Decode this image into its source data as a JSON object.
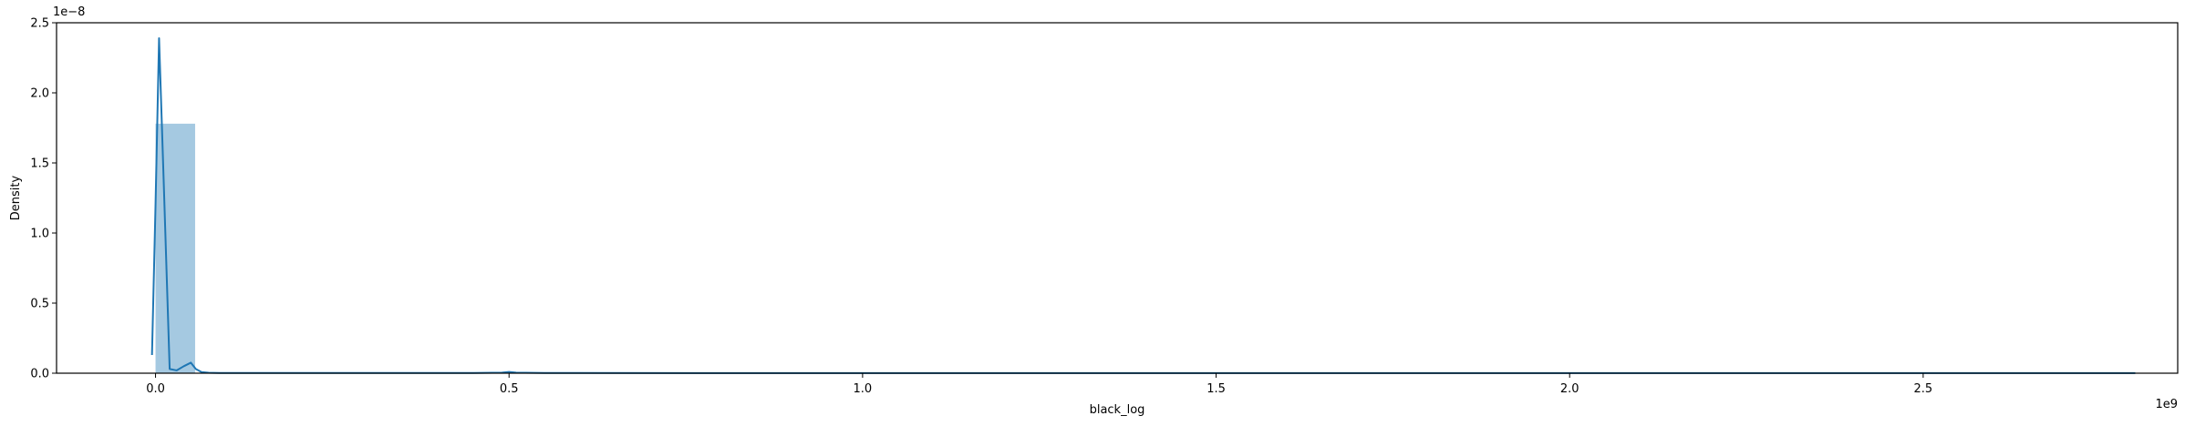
{
  "chart_data": {
    "type": "histogram",
    "xlabel": "black_log",
    "ylabel": "Density",
    "x_offset_text": "1e9",
    "y_offset_text": "1e−8",
    "xlim": [
      -0.14,
      2.86
    ],
    "ylim": [
      0,
      2.5
    ],
    "x_ticks": [
      {
        "value": 0.0,
        "label": "0.0"
      },
      {
        "value": 0.5,
        "label": "0.5"
      },
      {
        "value": 1.0,
        "label": "1.0"
      },
      {
        "value": 1.5,
        "label": "1.5"
      },
      {
        "value": 2.0,
        "label": "2.0"
      },
      {
        "value": 2.5,
        "label": "2.5"
      }
    ],
    "y_ticks": [
      {
        "value": 0.0,
        "label": "0.0"
      },
      {
        "value": 0.5,
        "label": "0.5"
      },
      {
        "value": 1.0,
        "label": "1.0"
      },
      {
        "value": 1.5,
        "label": "1.5"
      },
      {
        "value": 2.0,
        "label": "2.0"
      },
      {
        "value": 2.5,
        "label": "2.5"
      }
    ],
    "bars": [
      {
        "x0": 0.0,
        "x1": 0.056,
        "height": 1.78
      },
      {
        "x0": 0.056,
        "x1": 2.8,
        "height": 0.003
      }
    ],
    "kde": {
      "x": [
        -0.005,
        0.0,
        0.005,
        0.012,
        0.02,
        0.03,
        0.04,
        0.05,
        0.057,
        0.065,
        0.075,
        0.09,
        0.12,
        0.2,
        0.3,
        0.45,
        0.49,
        0.5,
        0.51,
        0.55,
        0.8,
        1.2,
        1.6,
        2.0,
        2.4,
        2.8
      ],
      "y": [
        0.13,
        1.2,
        2.39,
        1.3,
        0.03,
        0.02,
        0.05,
        0.075,
        0.03,
        0.008,
        0.003,
        0.002,
        0.002,
        0.002,
        0.002,
        0.002,
        0.004,
        0.009,
        0.004,
        0.002,
        0.001,
        0.001,
        0.001,
        0.001,
        0.001,
        0.001
      ]
    },
    "colors": {
      "bar_fill": "#1f77b4",
      "bar_opacity": 0.4,
      "kde_line": "#1f77b4"
    },
    "grid": false,
    "legend": "none"
  }
}
